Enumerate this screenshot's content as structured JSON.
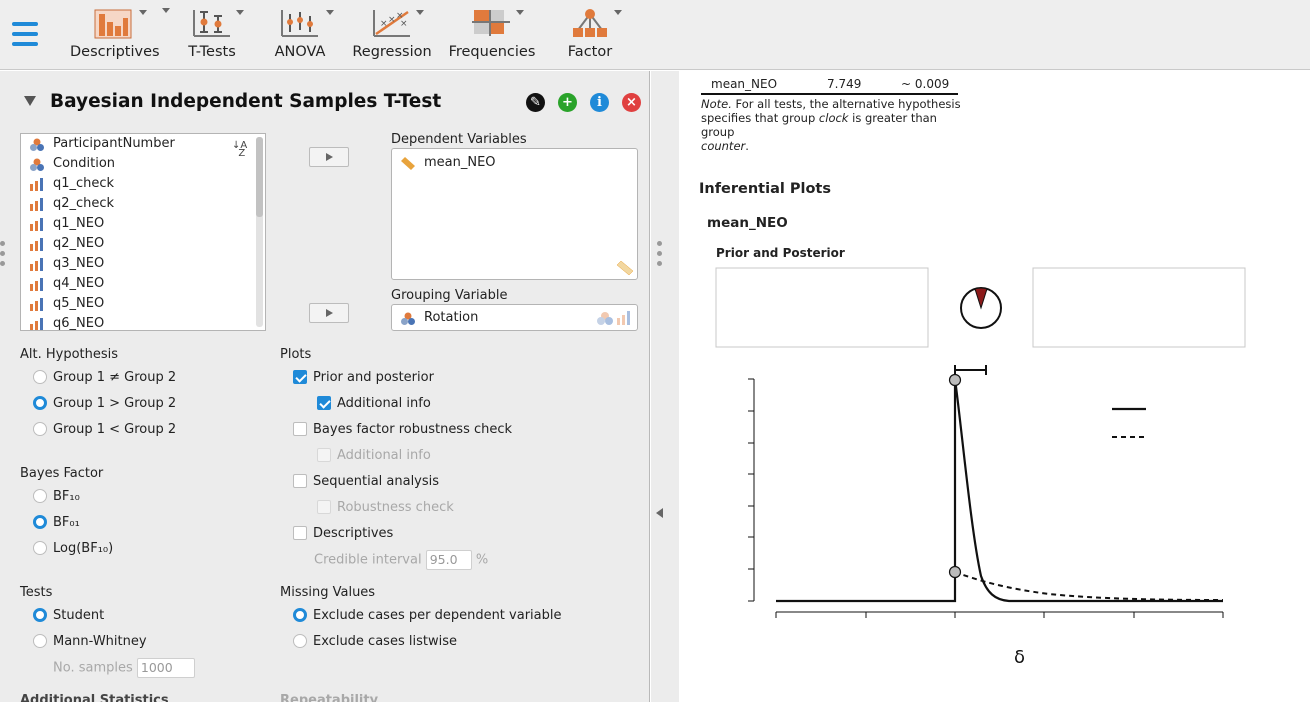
{
  "toolbar": {
    "items": [
      {
        "label": "Descriptives",
        "icon": "descriptives-icon"
      },
      {
        "label": "T-Tests",
        "icon": "t-tests-icon"
      },
      {
        "label": "ANOVA",
        "icon": "anova-icon"
      },
      {
        "label": "Regression",
        "icon": "regression-icon"
      },
      {
        "label": "Frequencies",
        "icon": "frequencies-icon"
      },
      {
        "label": "Factor",
        "icon": "factor-icon"
      }
    ]
  },
  "analysis": {
    "title": "Bayesian Independent Samples T-Test",
    "variables": [
      "ParticipantNumber",
      "Condition",
      "q1_check",
      "q2_check",
      "q1_NEO",
      "q2_NEO",
      "q3_NEO",
      "q4_NEO",
      "q5_NEO",
      "q6_NEO"
    ],
    "dependent_label": "Dependent Variables",
    "dependent_values": [
      "mean_NEO"
    ],
    "grouping_label": "Grouping Variable",
    "grouping_value": "Rotation",
    "alt_hypothesis": {
      "label": "Alt. Hypothesis",
      "options": [
        "Group 1 ≠ Group 2",
        "Group 1 > Group 2",
        "Group 1 < Group 2"
      ],
      "selected": 1
    },
    "bayes_factor": {
      "label": "Bayes Factor",
      "options": [
        "BF₁₀",
        "BF₀₁",
        "Log(BF₁₀)"
      ],
      "selected": 1
    },
    "tests": {
      "label": "Tests",
      "options": [
        "Student",
        "Mann-Whitney"
      ],
      "selected": 0,
      "samples_label": "No. samples",
      "samples_value": "1000"
    },
    "additional_statistics_label": "Additional Statistics",
    "plots": {
      "label": "Plots",
      "prior_posterior": "Prior and posterior",
      "additional_info": "Additional info",
      "robustness": "Bayes factor robustness check",
      "additional_info_2": "Additional info",
      "sequential": "Sequential analysis",
      "robustness_check": "Robustness check",
      "descriptives": "Descriptives",
      "credible_label": "Credible interval",
      "credible_value": "95.0",
      "credible_unit": "%"
    },
    "missing": {
      "label": "Missing Values",
      "options": [
        "Exclude cases per dependent variable",
        "Exclude cases listwise"
      ],
      "selected": 0
    },
    "repeatability_label": "Repeatability"
  },
  "results": {
    "table_row": {
      "variable": "mean_NEO",
      "bf": "7.749",
      "error": "~ 0.009"
    },
    "note_prefix": "Note.",
    "note_1": " For all tests, the alternative hypothesis",
    "note_2": "specifies that group ",
    "note_clock": "clock",
    "note_3": " is greater than group",
    "note_counter": "counter",
    "note_end": ".",
    "inferential_title": "Inferential Plots",
    "variable_title": "mean_NEO",
    "plot_title": "Prior and Posterior",
    "x_axis_symbol": "δ"
  },
  "colors": {
    "accent": "#1f8ad8",
    "pie_red": "#8b1a1a",
    "add_green": "#2aa32a",
    "close_red": "#e04040"
  }
}
